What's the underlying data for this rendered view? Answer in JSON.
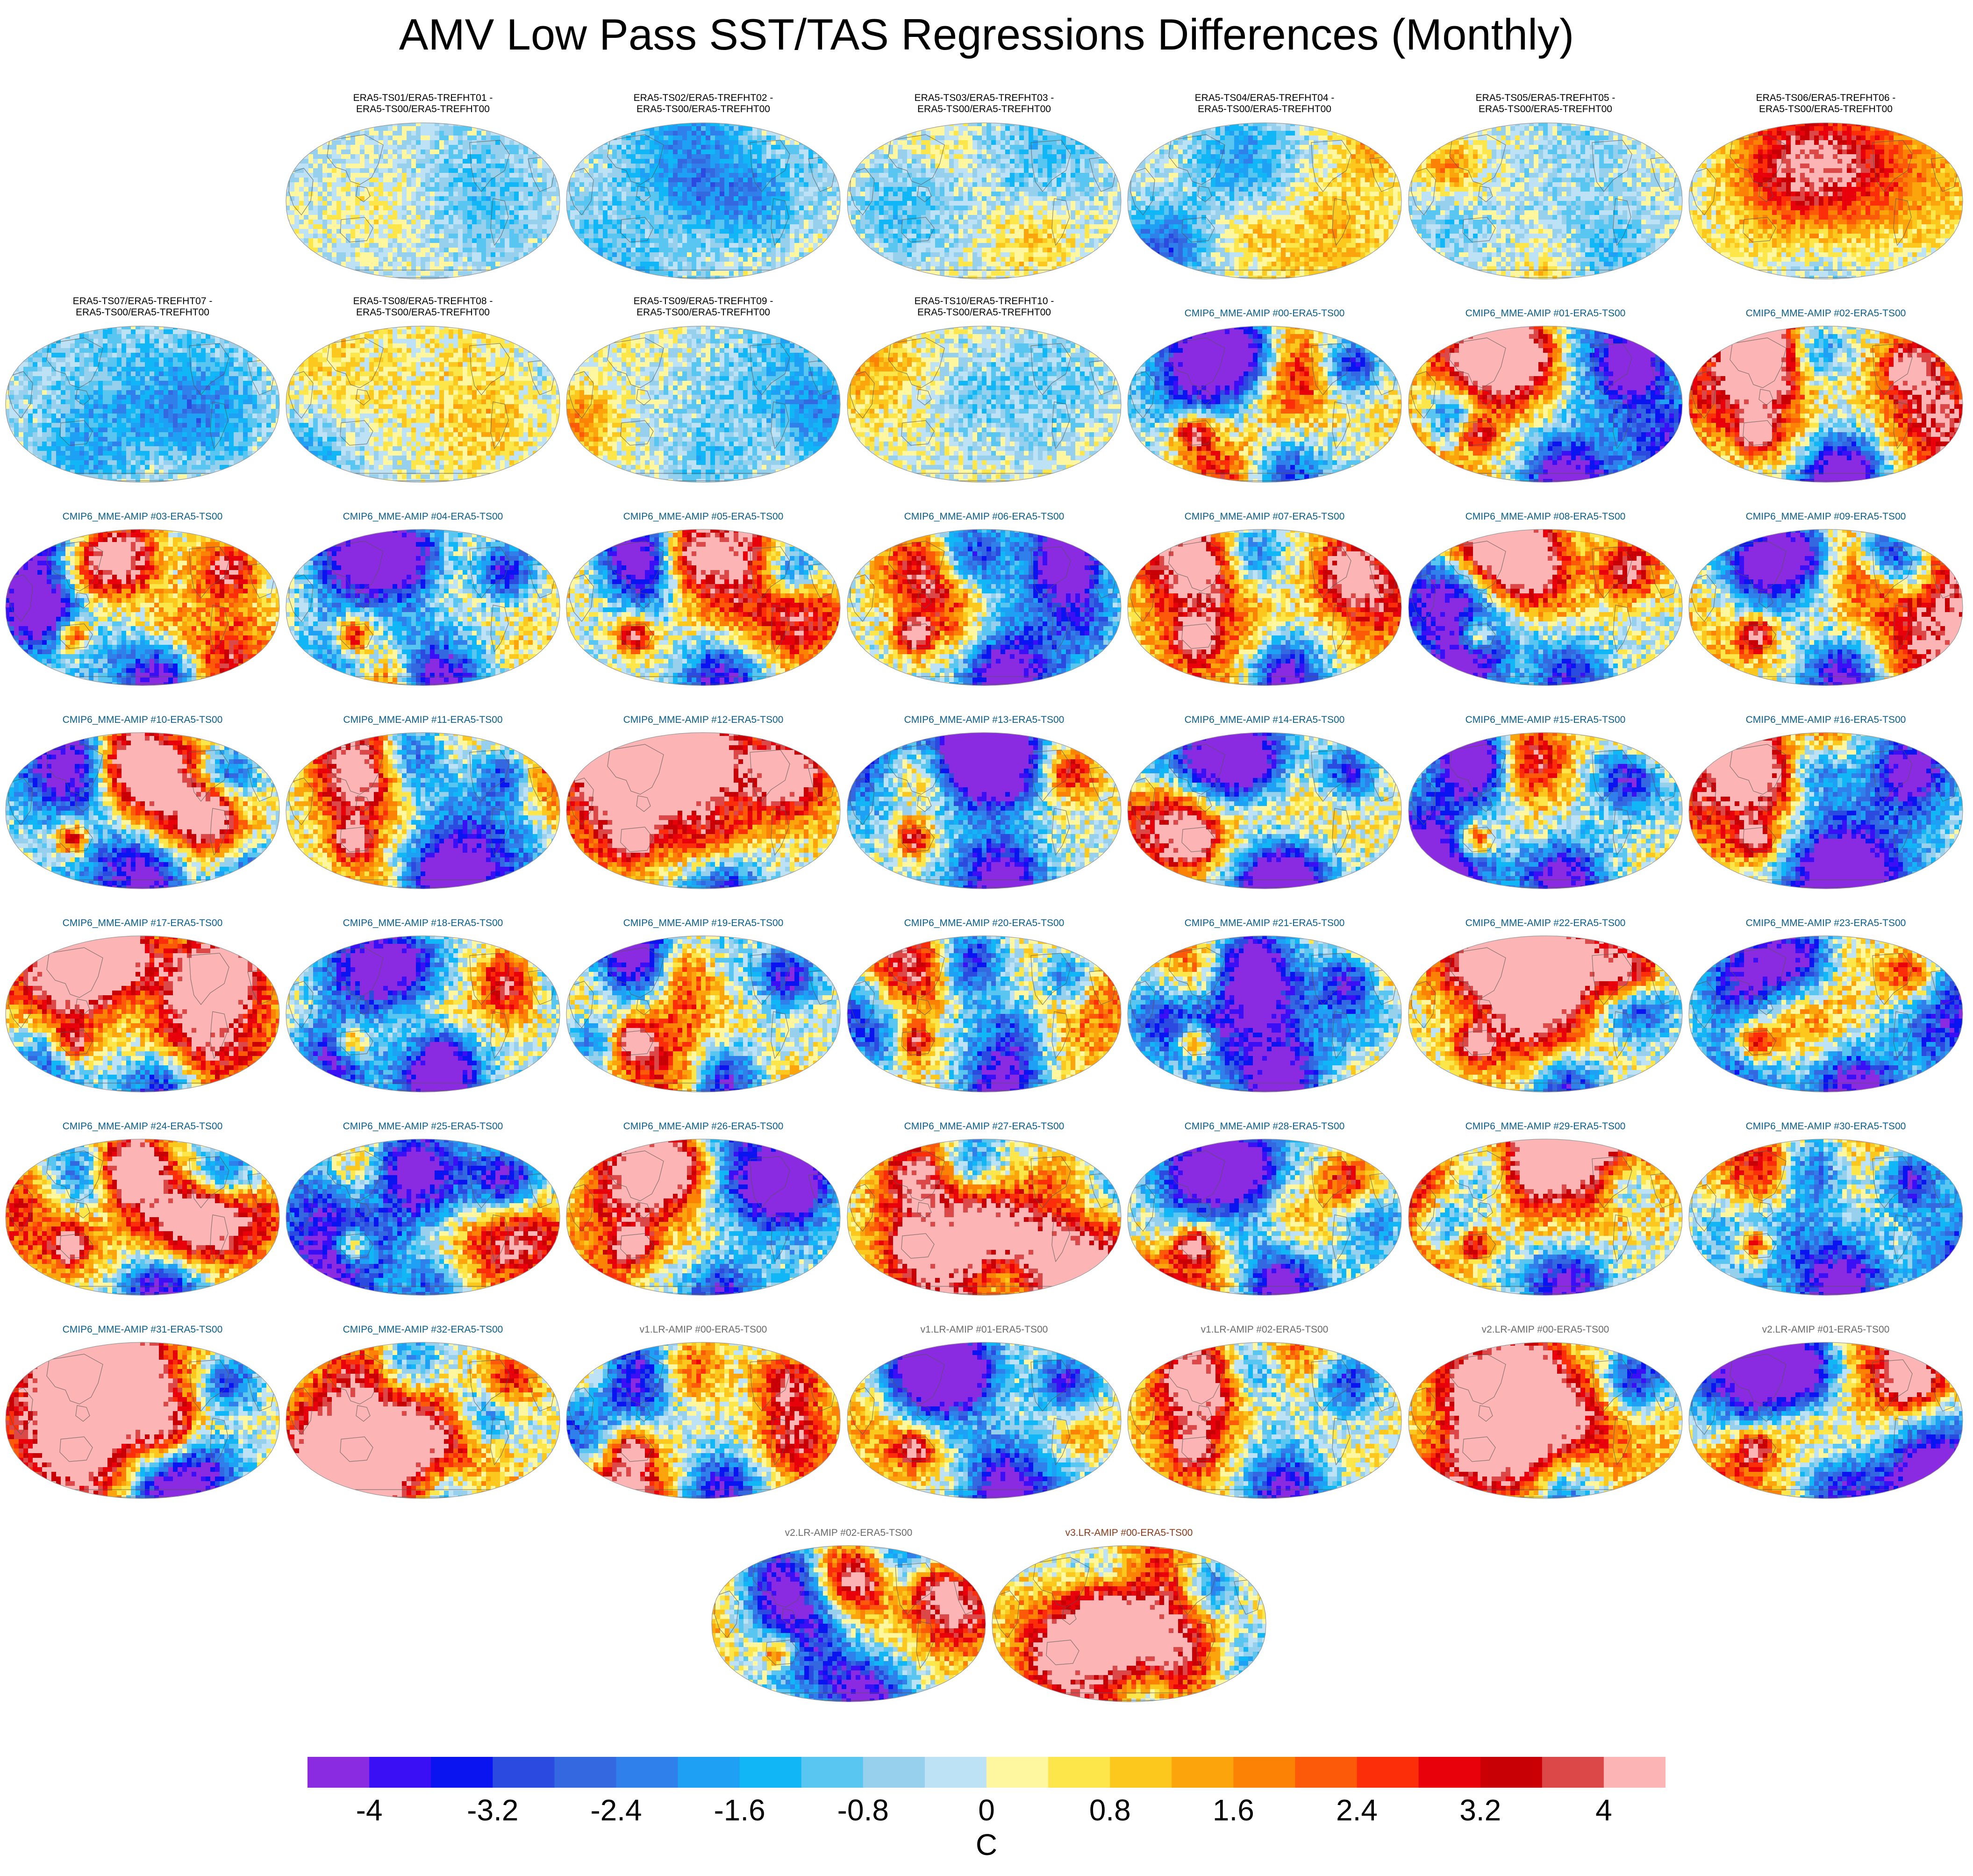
{
  "title": "AMV Low Pass SST/TAS Regressions Differences (Monthly)",
  "chart_data": {
    "type": "heatmap",
    "title": "AMV Low Pass SST/TAS Regressions Differences (Monthly)",
    "layout": "grid of global map panels (Robinson projection)",
    "panels": [
      {
        "title": "ERA5-TS01/ERA5-TREFHT01 -\nERA5-TS00/ERA5-TREFHT00",
        "group": "era5",
        "intensity": 0.3
      },
      {
        "title": "ERA5-TS02/ERA5-TREFHT02 -\nERA5-TS00/ERA5-TREFHT00",
        "group": "era5",
        "intensity": 0.45
      },
      {
        "title": "ERA5-TS03/ERA5-TREFHT03 -\nERA5-TS00/ERA5-TREFHT00",
        "group": "era5",
        "intensity": 0.45
      },
      {
        "title": "ERA5-TS04/ERA5-TREFHT04 -\nERA5-TS00/ERA5-TREFHT00",
        "group": "era5",
        "intensity": 0.45
      },
      {
        "title": "ERA5-TS05/ERA5-TREFHT05 -\nERA5-TS00/ERA5-TREFHT00",
        "group": "era5",
        "intensity": 0.45
      },
      {
        "title": "ERA5-TS06/ERA5-TREFHT06 -\nERA5-TS00/ERA5-TREFHT00",
        "group": "era5",
        "intensity": 0.45
      },
      {
        "title": "ERA5-TS07/ERA5-TREFHT07 -\nERA5-TS00/ERA5-TREFHT00",
        "group": "era5",
        "intensity": 0.5
      },
      {
        "title": "ERA5-TS08/ERA5-TREFHT08 -\nERA5-TS00/ERA5-TREFHT00",
        "group": "era5",
        "intensity": 0.5
      },
      {
        "title": "ERA5-TS09/ERA5-TREFHT09 -\nERA5-TS00/ERA5-TREFHT00",
        "group": "era5",
        "intensity": 0.5
      },
      {
        "title": "ERA5-TS10/ERA5-TREFHT10 -\nERA5-TS00/ERA5-TREFHT00",
        "group": "era5",
        "intensity": 0.5
      },
      {
        "title": "CMIP6_MME-AMIP  #00-ERA5-TS00",
        "group": "cmip",
        "intensity": 1
      },
      {
        "title": "CMIP6_MME-AMIP  #01-ERA5-TS00",
        "group": "cmip",
        "intensity": 1
      },
      {
        "title": "CMIP6_MME-AMIP  #02-ERA5-TS00",
        "group": "cmip",
        "intensity": 1
      },
      {
        "title": "CMIP6_MME-AMIP  #03-ERA5-TS00",
        "group": "cmip",
        "intensity": 1
      },
      {
        "title": "CMIP6_MME-AMIP  #04-ERA5-TS00",
        "group": "cmip",
        "intensity": 1
      },
      {
        "title": "CMIP6_MME-AMIP  #05-ERA5-TS00",
        "group": "cmip",
        "intensity": 1
      },
      {
        "title": "CMIP6_MME-AMIP  #06-ERA5-TS00",
        "group": "cmip",
        "intensity": 1
      },
      {
        "title": "CMIP6_MME-AMIP  #07-ERA5-TS00",
        "group": "cmip",
        "intensity": 1
      },
      {
        "title": "CMIP6_MME-AMIP  #08-ERA5-TS00",
        "group": "cmip",
        "intensity": 1
      },
      {
        "title": "CMIP6_MME-AMIP  #09-ERA5-TS00",
        "group": "cmip",
        "intensity": 1
      },
      {
        "title": "CMIP6_MME-AMIP  #10-ERA5-TS00",
        "group": "cmip",
        "intensity": 1
      },
      {
        "title": "CMIP6_MME-AMIP  #11-ERA5-TS00",
        "group": "cmip",
        "intensity": 1
      },
      {
        "title": "CMIP6_MME-AMIP  #12-ERA5-TS00",
        "group": "cmip",
        "intensity": 1
      },
      {
        "title": "CMIP6_MME-AMIP  #13-ERA5-TS00",
        "group": "cmip",
        "intensity": 1
      },
      {
        "title": "CMIP6_MME-AMIP  #14-ERA5-TS00",
        "group": "cmip",
        "intensity": 1
      },
      {
        "title": "CMIP6_MME-AMIP  #15-ERA5-TS00",
        "group": "cmip",
        "intensity": 1
      },
      {
        "title": "CMIP6_MME-AMIP  #16-ERA5-TS00",
        "group": "cmip",
        "intensity": 1
      },
      {
        "title": "CMIP6_MME-AMIP  #17-ERA5-TS00",
        "group": "cmip",
        "intensity": 1
      },
      {
        "title": "CMIP6_MME-AMIP  #18-ERA5-TS00",
        "group": "cmip",
        "intensity": 1
      },
      {
        "title": "CMIP6_MME-AMIP  #19-ERA5-TS00",
        "group": "cmip",
        "intensity": 1
      },
      {
        "title": "CMIP6_MME-AMIP  #20-ERA5-TS00",
        "group": "cmip",
        "intensity": 1
      },
      {
        "title": "CMIP6_MME-AMIP  #21-ERA5-TS00",
        "group": "cmip",
        "intensity": 1
      },
      {
        "title": "CMIP6_MME-AMIP  #22-ERA5-TS00",
        "group": "cmip",
        "intensity": 1
      },
      {
        "title": "CMIP6_MME-AMIP  #23-ERA5-TS00",
        "group": "cmip",
        "intensity": 1
      },
      {
        "title": "CMIP6_MME-AMIP  #24-ERA5-TS00",
        "group": "cmip",
        "intensity": 1
      },
      {
        "title": "CMIP6_MME-AMIP  #25-ERA5-TS00",
        "group": "cmip",
        "intensity": 1
      },
      {
        "title": "CMIP6_MME-AMIP  #26-ERA5-TS00",
        "group": "cmip",
        "intensity": 1
      },
      {
        "title": "CMIP6_MME-AMIP  #27-ERA5-TS00",
        "group": "cmip",
        "intensity": 1
      },
      {
        "title": "CMIP6_MME-AMIP  #28-ERA5-TS00",
        "group": "cmip",
        "intensity": 1
      },
      {
        "title": "CMIP6_MME-AMIP  #29-ERA5-TS00",
        "group": "cmip",
        "intensity": 1
      },
      {
        "title": "CMIP6_MME-AMIP  #30-ERA5-TS00",
        "group": "cmip",
        "intensity": 1
      },
      {
        "title": "CMIP6_MME-AMIP  #31-ERA5-TS00",
        "group": "cmip",
        "intensity": 1
      },
      {
        "title": "CMIP6_MME-AMIP  #32-ERA5-TS00",
        "group": "cmip",
        "intensity": 1
      },
      {
        "title": "v1.LR-AMIP  #00-ERA5-TS00",
        "group": "v1",
        "intensity": 0.9
      },
      {
        "title": "v1.LR-AMIP  #01-ERA5-TS00",
        "group": "v1",
        "intensity": 0.9
      },
      {
        "title": "v1.LR-AMIP  #02-ERA5-TS00",
        "group": "v1",
        "intensity": 0.9
      },
      {
        "title": "v2.LR-AMIP  #00-ERA5-TS00",
        "group": "v2",
        "intensity": 0.9
      },
      {
        "title": "v2.LR-AMIP  #01-ERA5-TS00",
        "group": "v2",
        "intensity": 0.9
      },
      {
        "title": "v2.LR-AMIP  #02-ERA5-TS00",
        "group": "v2",
        "intensity": 0.9
      },
      {
        "title": "v3.LR-AMIP  #00-ERA5-TS00",
        "group": "v3",
        "intensity": 0.9
      }
    ],
    "colorbar": {
      "unit": "C",
      "min": -4.4,
      "max": 4.4,
      "step": 0.4,
      "colors": [
        "#8a2be2",
        "#3b0ff5",
        "#0a14f0",
        "#2a4ae0",
        "#3468e0",
        "#2f80ea",
        "#1ea0f4",
        "#10b6f6",
        "#58c6f0",
        "#96d0ec",
        "#bde2f6",
        "#fff6a0",
        "#fde64a",
        "#fcc81e",
        "#fca40c",
        "#fc8206",
        "#fc5a08",
        "#fc2e0a",
        "#e8000a",
        "#c80006",
        "#dc4848",
        "#fcb4b4"
      ],
      "tick_values": [
        -4,
        -3.2,
        -2.4,
        -1.6,
        -0.8,
        0,
        0.8,
        1.6,
        2.4,
        3.2,
        4
      ],
      "tick_labels": [
        "-4",
        "-3.2",
        "-2.4",
        "-1.6",
        "-0.8",
        "0",
        "0.8",
        "1.6",
        "2.4",
        "3.2",
        "4"
      ]
    }
  }
}
